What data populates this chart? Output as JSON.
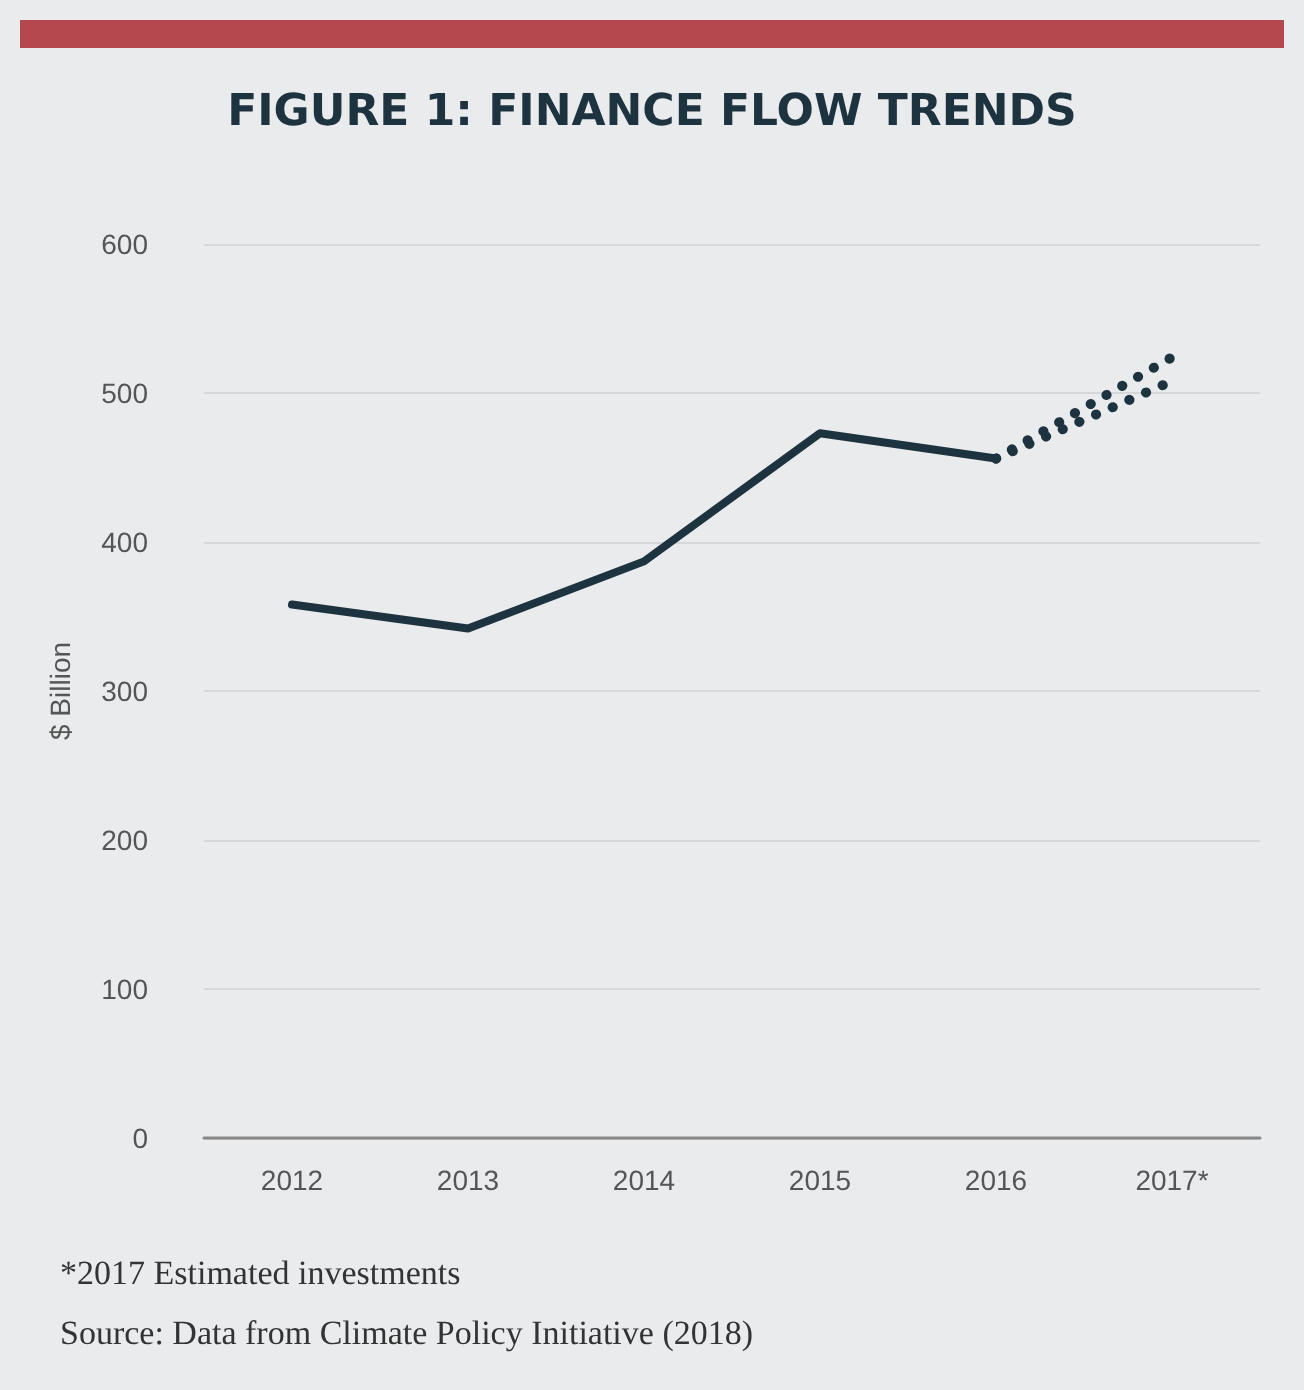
{
  "chart_data": {
    "type": "line",
    "title": "FIGURE 1: FINANCE FLOW TRENDS",
    "ylabel": "$ Billion",
    "categories": [
      "2012",
      "2013",
      "2014",
      "2015",
      "2016",
      "2017*"
    ],
    "series": [
      {
        "color": "#1e3340",
        "line_style": "solid",
        "values": [
          358,
          342,
          387,
          473,
          456,
          null
        ]
      },
      {
        "color": "#1e3340",
        "line_style": "dotted",
        "values": [
          null,
          null,
          null,
          null,
          456,
          524
        ]
      },
      {
        "color": "#1e3340",
        "line_style": "dotted",
        "values": [
          null,
          null,
          null,
          null,
          456,
          508
        ]
      }
    ],
    "ylim": [
      0,
      600
    ],
    "yticks": [
      0,
      100,
      200,
      300,
      400,
      500,
      600
    ],
    "grid": "y",
    "marker": "none",
    "annotations": [
      "*2017 Estimated investments",
      "Source: Data from Climate Policy Initiative (2018)"
    ]
  }
}
